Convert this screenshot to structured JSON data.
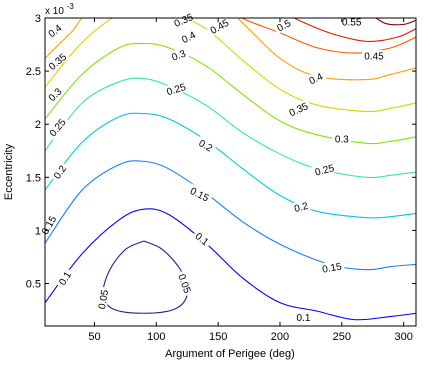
{
  "chart_data": {
    "type": "contour",
    "xlabel": "Argument of Perigee (deg)",
    "ylabel": "Eccentricity",
    "y_exponent_label": "x 10",
    "y_exponent_power": "-3",
    "xlim": [
      10,
      310
    ],
    "ylim": [
      0.1,
      3.0
    ],
    "xticks": [
      {
        "value": 50,
        "label": "50"
      },
      {
        "value": 100,
        "label": "100"
      },
      {
        "value": 150,
        "label": "150"
      },
      {
        "value": 200,
        "label": "200"
      },
      {
        "value": 250,
        "label": "250"
      },
      {
        "value": 300,
        "label": "300"
      }
    ],
    "yticks": [
      {
        "value": 0.5,
        "label": "0.5"
      },
      {
        "value": 1,
        "label": "1"
      },
      {
        "value": 1.5,
        "label": "1.5"
      },
      {
        "value": 2,
        "label": "2"
      },
      {
        "value": 2.5,
        "label": "2.5"
      },
      {
        "value": 3,
        "label": "3"
      }
    ],
    "levels": [
      {
        "level": 0.05,
        "color": "#1f1fa8",
        "closed": true,
        "points": [
          [
            90,
            0.9
          ],
          [
            105,
            0.82
          ],
          [
            120,
            0.62
          ],
          [
            125,
            0.4
          ],
          [
            115,
            0.26
          ],
          [
            90,
            0.22
          ],
          [
            65,
            0.26
          ],
          [
            57,
            0.4
          ],
          [
            62,
            0.62
          ],
          [
            75,
            0.82
          ],
          [
            90,
            0.9
          ]
        ],
        "labels": [
          {
            "text": "0.05",
            "x": 57,
            "y": 0.35,
            "angle": -80
          },
          {
            "text": "0.05",
            "x": 123,
            "y": 0.5,
            "angle": 70
          }
        ]
      },
      {
        "level": 0.1,
        "color": "#0000ff",
        "points": [
          [
            10,
            0.32
          ],
          [
            40,
            0.78
          ],
          [
            70,
            1.1
          ],
          [
            90,
            1.2
          ],
          [
            110,
            1.15
          ],
          [
            140,
            0.88
          ],
          [
            170,
            0.55
          ],
          [
            200,
            0.32
          ],
          [
            230,
            0.24
          ],
          [
            260,
            0.16
          ],
          [
            290,
            0.19
          ],
          [
            310,
            0.22
          ]
        ],
        "labels": [
          {
            "text": "0.1",
            "x": 26,
            "y": 0.55,
            "angle": -58
          },
          {
            "text": "0.1",
            "x": 137,
            "y": 0.92,
            "angle": 38
          },
          {
            "text": "0.1",
            "x": 219,
            "y": 0.18,
            "angle": 0
          }
        ]
      },
      {
        "level": 0.15,
        "color": "#1a7fff",
        "points": [
          [
            10,
            0.88
          ],
          [
            40,
            1.38
          ],
          [
            70,
            1.62
          ],
          [
            90,
            1.65
          ],
          [
            110,
            1.58
          ],
          [
            140,
            1.35
          ],
          [
            170,
            1.08
          ],
          [
            200,
            0.87
          ],
          [
            240,
            0.68
          ],
          [
            270,
            0.63
          ],
          [
            290,
            0.66
          ],
          [
            310,
            0.68
          ]
        ],
        "labels": [
          {
            "text": "0.15",
            "x": 13,
            "y": 1.05,
            "angle": -60
          },
          {
            "text": "0.15",
            "x": 135,
            "y": 1.34,
            "angle": 27
          },
          {
            "text": "0.15",
            "x": 242,
            "y": 0.65,
            "angle": -10
          }
        ]
      },
      {
        "level": 0.2,
        "color": "#00c8e6",
        "points": [
          [
            10,
            1.38
          ],
          [
            40,
            1.83
          ],
          [
            70,
            2.07
          ],
          [
            90,
            2.1
          ],
          [
            110,
            2.05
          ],
          [
            140,
            1.85
          ],
          [
            170,
            1.58
          ],
          [
            200,
            1.33
          ],
          [
            230,
            1.18
          ],
          [
            270,
            1.12
          ],
          [
            290,
            1.13
          ],
          [
            310,
            1.16
          ]
        ],
        "labels": [
          {
            "text": "0.2",
            "x": 22,
            "y": 1.55,
            "angle": -55
          },
          {
            "text": "0.2",
            "x": 140,
            "y": 1.8,
            "angle": 30
          },
          {
            "text": "0.2",
            "x": 217,
            "y": 1.22,
            "angle": -15
          }
        ]
      },
      {
        "level": 0.25,
        "color": "#33e6a6",
        "points": [
          [
            10,
            1.75
          ],
          [
            40,
            2.2
          ],
          [
            70,
            2.4
          ],
          [
            90,
            2.43
          ],
          [
            110,
            2.36
          ],
          [
            140,
            2.18
          ],
          [
            170,
            1.92
          ],
          [
            200,
            1.72
          ],
          [
            230,
            1.58
          ],
          [
            270,
            1.5
          ],
          [
            290,
            1.52
          ],
          [
            310,
            1.55
          ]
        ],
        "labels": [
          {
            "text": "0.25",
            "x": 20,
            "y": 1.97,
            "angle": -50
          },
          {
            "text": "0.25",
            "x": 116,
            "y": 2.33,
            "angle": -17
          },
          {
            "text": "0.25",
            "x": 236,
            "y": 1.57,
            "angle": -15
          }
        ]
      },
      {
        "level": 0.3,
        "color": "#7fe600",
        "points": [
          [
            10,
            2.05
          ],
          [
            40,
            2.47
          ],
          [
            70,
            2.72
          ],
          [
            90,
            2.76
          ],
          [
            110,
            2.72
          ],
          [
            140,
            2.55
          ],
          [
            170,
            2.28
          ],
          [
            200,
            2.03
          ],
          [
            230,
            1.9
          ],
          [
            270,
            1.82
          ],
          [
            290,
            1.84
          ],
          [
            310,
            1.88
          ]
        ],
        "labels": [
          {
            "text": "0.3",
            "x": 18,
            "y": 2.28,
            "angle": -45
          },
          {
            "text": "0.3",
            "x": 118,
            "y": 2.65,
            "angle": -20
          },
          {
            "text": "0.3",
            "x": 250,
            "y": 1.86,
            "angle": 0
          }
        ]
      },
      {
        "level": 0.35,
        "color": "#d6d600",
        "points": [
          [
            10,
            2.35
          ],
          [
            40,
            2.77
          ],
          [
            70,
            3.04
          ],
          [
            90,
            3.1
          ],
          [
            110,
            3.06
          ],
          [
            140,
            2.9
          ],
          [
            170,
            2.6
          ],
          [
            200,
            2.33
          ],
          [
            230,
            2.18
          ],
          [
            270,
            2.12
          ],
          [
            290,
            2.15
          ],
          [
            310,
            2.2
          ]
        ],
        "labels": [
          {
            "text": "0.35",
            "x": 20,
            "y": 2.59,
            "angle": -40
          },
          {
            "text": "0.35",
            "x": 122,
            "y": 2.98,
            "angle": -24
          },
          {
            "text": "0.35",
            "x": 215,
            "y": 2.14,
            "angle": -25
          }
        ]
      },
      {
        "level": 0.4,
        "color": "#ffa000",
        "points": [
          [
            10,
            2.62
          ],
          [
            30,
            2.85
          ],
          [
            55,
            3.1
          ],
          [
            140,
            3.25
          ],
          [
            170,
            2.95
          ],
          [
            200,
            2.62
          ],
          [
            230,
            2.45
          ],
          [
            270,
            2.42
          ],
          [
            290,
            2.47
          ],
          [
            310,
            2.53
          ]
        ],
        "labels": [
          {
            "text": "0.4",
            "x": 18,
            "y": 2.88,
            "angle": -38
          },
          {
            "text": "0.4",
            "x": 126,
            "y": 2.82,
            "angle": -27
          },
          {
            "text": "0.4",
            "x": 229,
            "y": 2.43,
            "angle": -25
          }
        ]
      },
      {
        "level": 0.45,
        "color": "#ff5a00",
        "points": [
          [
            160,
            3.05
          ],
          [
            175,
            2.97
          ],
          [
            200,
            2.86
          ],
          [
            230,
            2.72
          ],
          [
            260,
            2.67
          ],
          [
            290,
            2.72
          ],
          [
            310,
            2.82
          ]
        ],
        "labels": [
          {
            "text": "0.45",
            "x": 151,
            "y": 2.92,
            "angle": -30
          },
          {
            "text": "0.45",
            "x": 276,
            "y": 2.64,
            "angle": 0
          }
        ]
      },
      {
        "level": 0.5,
        "color": "#e61a00",
        "points": [
          [
            205,
            3.05
          ],
          [
            215,
            2.98
          ],
          [
            240,
            2.86
          ],
          [
            270,
            2.78
          ],
          [
            295,
            2.82
          ],
          [
            310,
            2.9
          ]
        ],
        "labels": [
          {
            "text": "0.5",
            "x": 203,
            "y": 2.93,
            "angle": -28
          }
        ]
      },
      {
        "level": 0.55,
        "color": "#8b0000",
        "points": [
          [
            272,
            3.05
          ],
          [
            285,
            2.95
          ],
          [
            300,
            2.94
          ],
          [
            310,
            2.98
          ]
        ],
        "labels": [
          {
            "text": "0.55",
            "x": 258,
            "y": 2.96,
            "angle": 0
          }
        ]
      }
    ]
  }
}
